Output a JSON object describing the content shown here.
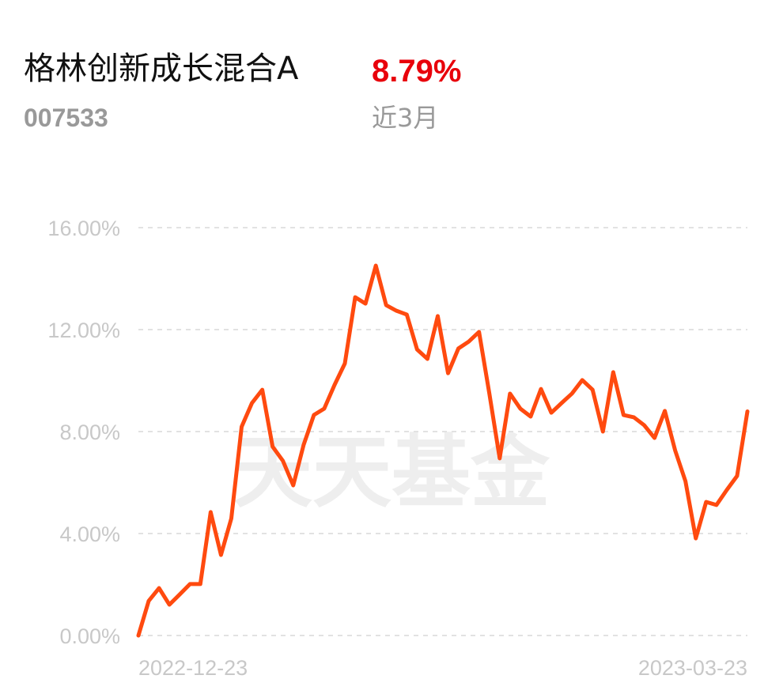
{
  "chart_data": {
    "type": "line",
    "title": "格林创新成长混合A",
    "code": "007533",
    "change": "8.79%",
    "period": "近3月",
    "watermark": "天天基金",
    "categories": [
      "2022-12-23",
      null,
      null,
      null,
      null,
      null,
      null,
      null,
      null,
      null,
      null,
      null,
      null,
      null,
      null,
      null,
      null,
      null,
      null,
      null,
      null,
      null,
      null,
      null,
      null,
      null,
      null,
      null,
      null,
      null,
      null,
      null,
      null,
      null,
      null,
      null,
      null,
      null,
      null,
      null,
      null,
      null,
      null,
      null,
      null,
      null,
      null,
      null,
      null,
      null,
      null,
      null,
      null,
      null,
      null,
      null,
      null,
      null,
      null,
      "2023-03-23"
    ],
    "series": [
      {
        "color": "#ff4a0f",
        "values": [
          0,
          1.36,
          1.86,
          1.21,
          1.61,
          2.02,
          2.02,
          4.84,
          3.16,
          4.59,
          8.19,
          9.12,
          9.64,
          7.41,
          6.85,
          5.89,
          7.47,
          8.65,
          8.9,
          9.83,
          10.67,
          13.27,
          13.02,
          14.51,
          12.96,
          12.74,
          12.59,
          11.22,
          10.85,
          12.53,
          10.29,
          11.26,
          11.53,
          11.91,
          9.49,
          6.95,
          9.49,
          8.9,
          8.59,
          9.67,
          8.74,
          9.12,
          9.49,
          10.02,
          9.64,
          8.0,
          10.33,
          8.65,
          8.56,
          8.25,
          7.75,
          8.81,
          7.26,
          6.05,
          3.81,
          5.24,
          5.12,
          5.71,
          6.26,
          8.79
        ]
      }
    ],
    "ylim": [
      0,
      16
    ],
    "yticks": [
      {
        "value": 0,
        "label": "0.00%"
      },
      {
        "value": 4,
        "label": "4.00%"
      },
      {
        "value": 8,
        "label": "8.00%"
      },
      {
        "value": 12,
        "label": "12.00%"
      },
      {
        "value": 16,
        "label": "16.00%"
      }
    ],
    "grid": true
  }
}
